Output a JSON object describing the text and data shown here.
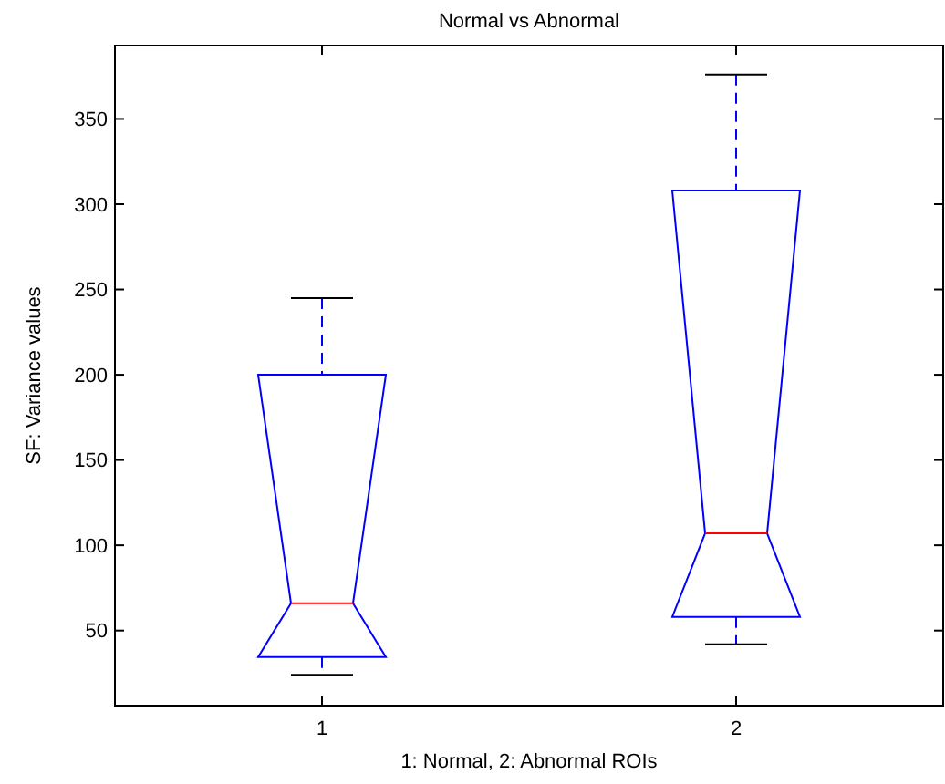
{
  "chart_data": {
    "type": "box",
    "title": "Normal vs Abnormal",
    "xlabel": "1: Normal, 2: Abnormal ROIs",
    "ylabel": "SF: Variance values",
    "categories": [
      "1",
      "2"
    ],
    "color": "#0000ff",
    "ylim": [
      6,
      393
    ],
    "yticks": [
      50,
      100,
      150,
      200,
      250,
      300,
      350
    ],
    "grid": false,
    "boxes": [
      {
        "low": 24,
        "q1": 34.5,
        "median": 66,
        "q3": 200,
        "high": 245
      },
      {
        "low": 42,
        "q1": 58,
        "median": 107,
        "q3": 308,
        "high": 376
      }
    ]
  }
}
